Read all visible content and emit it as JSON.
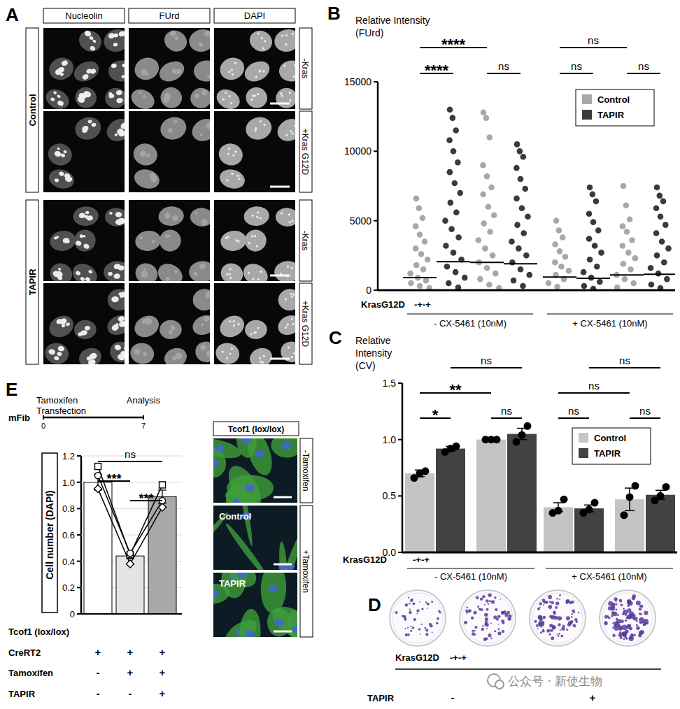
{
  "panel_labels": [
    "A",
    "B",
    "C",
    "D",
    "E"
  ],
  "panel_a": {
    "columns": [
      "Nucleolin",
      "FUrd",
      "DAPI"
    ],
    "groups": [
      {
        "label": "Control",
        "rows": [
          "-Kras",
          "+Kras G12D"
        ]
      },
      {
        "label": "TAPIR",
        "rows": [
          "-Kras",
          "+Kras G12D"
        ]
      }
    ]
  },
  "chart_data": [
    {
      "type": "strip",
      "y_label": "Relative Intensity (FUrd)",
      "category_label": "KrasG12D",
      "category_signs": "-+-+",
      "x_groups": [
        "- CX-5461 (10nM)",
        "+ CX-5461 (10nM)"
      ],
      "categories": [
        null,
        null,
        null,
        null,
        null,
        null,
        null,
        null
      ],
      "series": [
        {
          "name": "Control",
          "color": "#a8a8a8"
        },
        {
          "name": "TAPIR",
          "color": "#3a3a3a"
        }
      ],
      "legend": "top-right",
      "ylim": [
        0,
        15000
      ],
      "yticks": [
        0,
        5000,
        10000,
        15000
      ],
      "groups": [
        {
          "series": "Control",
          "mean": 900,
          "points": [
            6600,
            5900,
            5200,
            4600,
            4000,
            3500,
            3000,
            2600,
            2200,
            1800,
            1500,
            1200,
            900,
            700,
            500,
            300,
            150
          ]
        },
        {
          "series": "TAPIR",
          "mean": 2050,
          "points": [
            13000,
            12400,
            11500,
            10800,
            10000,
            9200,
            8500,
            7700,
            7000,
            6300,
            5600,
            5000,
            4400,
            3800,
            3200,
            2700,
            2200,
            1700,
            1300,
            900,
            500,
            200
          ]
        },
        {
          "series": "Control",
          "mean": 2000,
          "points": [
            12800,
            12400,
            11000,
            9000,
            8200,
            7400,
            6900,
            6000,
            5400,
            4800,
            4200,
            3600,
            3000,
            2500,
            2000,
            1600,
            1200,
            800,
            400,
            150
          ]
        },
        {
          "series": "TAPIR",
          "mean": 1900,
          "points": [
            10500,
            10000,
            9600,
            8800,
            8000,
            7300,
            6600,
            5900,
            5300,
            4700,
            4100,
            3500,
            3000,
            2500,
            2000,
            1500,
            1100,
            700,
            300
          ]
        },
        {
          "series": "Control",
          "mean": 950,
          "points": [
            5000,
            4300,
            3800,
            3300,
            2800,
            2400,
            2000,
            1700,
            1400,
            1100,
            800,
            500,
            250
          ]
        },
        {
          "series": "TAPIR",
          "mean": 850,
          "points": [
            7400,
            6900,
            6400,
            5500,
            4900,
            4300,
            3700,
            3200,
            2700,
            2200,
            1700,
            1300,
            900,
            600,
            300,
            100
          ]
        },
        {
          "series": "Control",
          "mean": 1100,
          "points": [
            7500,
            6100,
            5100,
            4600,
            4200,
            3600,
            3200,
            2700,
            2300,
            1900,
            1500,
            1100,
            800,
            500,
            200
          ]
        },
        {
          "series": "TAPIR",
          "mean": 1150,
          "points": [
            7400,
            6800,
            6400,
            5900,
            5300,
            4700,
            4100,
            3500,
            3000,
            2500,
            2000,
            1600,
            1200,
            800,
            400,
            150
          ]
        }
      ],
      "annotations": [
        {
          "text": "****",
          "from": 0,
          "to": 2
        },
        {
          "text": "****",
          "from": 0,
          "to": 1
        },
        {
          "text": "ns",
          "from": 2,
          "to": 3
        },
        {
          "text": "ns",
          "from": 4,
          "to": 6
        },
        {
          "text": "ns",
          "from": 4,
          "to": 5
        },
        {
          "text": "ns",
          "from": 6,
          "to": 7
        }
      ]
    },
    {
      "type": "bar",
      "y_label": "Relative Intensity (CV)",
      "category_label": "KrasG12D",
      "category_signs": "-+-+",
      "x_groups": [
        "- CX-5461 (10nM)",
        "+ CX-5461 (10nM)"
      ],
      "categories": [
        null,
        null,
        null,
        null,
        null,
        null,
        null,
        null
      ],
      "series": [
        {
          "name": "Control",
          "color": "#c4c4c4"
        },
        {
          "name": "TAPIR",
          "color": "#424242"
        }
      ],
      "legend": "top-right",
      "ylim": [
        0,
        1.5
      ],
      "yticks": [
        {
          "value": 0,
          "label": "0.0"
        },
        0.5,
        {
          "value": 1,
          "label": "1.0"
        },
        1.5
      ],
      "groups": [
        {
          "series": "Control",
          "value": 0.7,
          "error": 0.03,
          "points": [
            0.66,
            0.7,
            0.72
          ]
        },
        {
          "series": "TAPIR",
          "value": 0.92,
          "error": 0.02,
          "points": [
            0.89,
            0.92,
            0.94
          ]
        },
        {
          "series": "Control",
          "value": 1.0,
          "error": 0.0,
          "points": [
            1.0,
            1.0,
            1.0
          ]
        },
        {
          "series": "TAPIR",
          "value": 1.05,
          "error": 0.05,
          "points": [
            0.98,
            1.04,
            1.12
          ]
        },
        {
          "series": "Control",
          "value": 0.4,
          "error": 0.04,
          "points": [
            0.35,
            0.37,
            0.47
          ]
        },
        {
          "series": "TAPIR",
          "value": 0.39,
          "error": 0.03,
          "points": [
            0.35,
            0.38,
            0.44
          ]
        },
        {
          "series": "Control",
          "value": 0.47,
          "error": 0.1,
          "points": [
            0.33,
            0.49,
            0.59
          ]
        },
        {
          "series": "TAPIR",
          "value": 0.51,
          "error": 0.04,
          "points": [
            0.46,
            0.5,
            0.58
          ]
        }
      ],
      "annotations": [
        {
          "text": "*",
          "from": 0,
          "to": 1
        },
        {
          "text": "ns",
          "from": 2,
          "to": 3
        },
        {
          "text": "**",
          "from": 0,
          "to": 2
        },
        {
          "text": "ns",
          "from": 1,
          "to": 3
        },
        {
          "text": "ns",
          "from": 4,
          "to": 5
        },
        {
          "text": "ns",
          "from": 6,
          "to": 7
        },
        {
          "text": "ns",
          "from": 4,
          "to": 6
        },
        {
          "text": "ns",
          "from": 5,
          "to": 7
        }
      ]
    },
    {
      "type": "bar",
      "y_label": "Cell number (DAPI)",
      "categories": [
        null,
        null,
        null
      ],
      "values": [
        1.0,
        0.44,
        0.89
      ],
      "errors": [
        0.06,
        0.02,
        0.05
      ],
      "colors": [
        "#ffffff",
        "#e4e4e4",
        "#a8a8a8"
      ],
      "grid": true,
      "ylim": [
        0,
        1.2
      ],
      "yticks": [
        0,
        0.2,
        0.4,
        0.6,
        0.8,
        {
          "value": 1,
          "label": "1.0"
        },
        1.2
      ],
      "replicates": [
        {
          "marker": "square",
          "values": [
            1.12,
            0.45,
            0.98
          ]
        },
        {
          "marker": "diamond",
          "values": [
            0.95,
            0.38,
            0.81
          ]
        },
        {
          "marker": "circle",
          "values": [
            1.05,
            0.46,
            0.86
          ]
        }
      ],
      "annotations": [
        {
          "text": "***",
          "from": 1,
          "to": 2
        },
        {
          "text": "***",
          "from": 0,
          "to": 1
        },
        {
          "text": "ns",
          "from": 0,
          "to": 2
        }
      ],
      "conditions": [
        {
          "label": "Tcof1 (lox/lox)"
        },
        {
          "label": "CreRT2",
          "values": [
            "+",
            "+",
            "+"
          ]
        },
        {
          "label": "Tamoxifen",
          "values": [
            "-",
            "+",
            "+"
          ]
        },
        {
          "label": "TAPIR",
          "values": [
            "-",
            "-",
            "+"
          ]
        }
      ]
    }
  ],
  "panel_d": {
    "rows": [
      {
        "label": "KrasG12D",
        "signs": "-+-+"
      },
      {
        "label": "TAPIR",
        "signs": [
          "-",
          "+"
        ]
      }
    ]
  },
  "panel_e": {
    "timeline": {
      "label": "mFib",
      "xlim": [
        0,
        7
      ],
      "xticks": [
        0,
        7
      ],
      "events": [
        {
          "x": 0,
          "texts": [
            "Tamoxifen",
            "Transfection"
          ]
        },
        {
          "x": 7,
          "texts": [
            "Analysis"
          ]
        }
      ]
    },
    "images": {
      "title": "Tcof1 (lox/lox)",
      "groups": [
        {
          "label": "-Tamoxifen",
          "insets": [
            null
          ]
        },
        {
          "label": "+Tamoxifen",
          "insets": [
            "Control",
            "TAPIR"
          ]
        }
      ]
    }
  },
  "watermark": "公众号 · 新使生物"
}
